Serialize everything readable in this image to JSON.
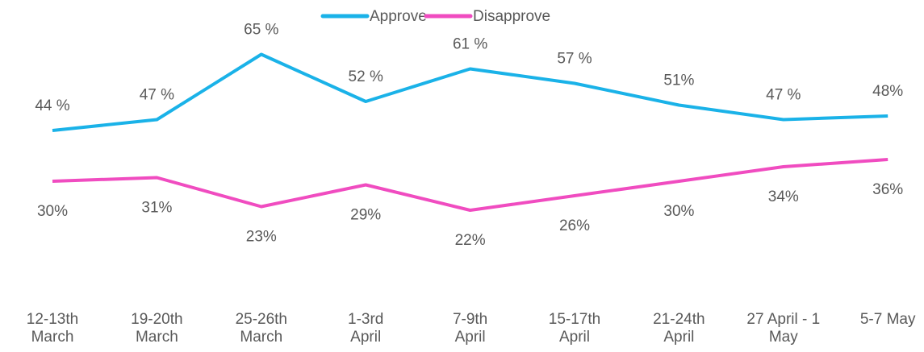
{
  "chart_data": {
    "type": "line",
    "categories": [
      "12-13th\nMarch",
      "19-20th\nMarch",
      "25-26th\nMarch",
      "1-3rd\nApril",
      "7-9th\nApril",
      "15-17th\nApril",
      "21-24th\nApril",
      "27 April - 1\nMay",
      "5-7 May"
    ],
    "series": [
      {
        "name": "Approve",
        "color": "#1ab2e8",
        "values": [
          44,
          47,
          65,
          52,
          61,
          57,
          51,
          47,
          48
        ],
        "value_labels": [
          "44 %",
          "47 %",
          "65 %",
          "52 %",
          "61 %",
          "57 %",
          "51%",
          "47 %",
          "48%"
        ]
      },
      {
        "name": "Disapprove",
        "color": "#f04cc0",
        "values": [
          30,
          31,
          23,
          29,
          22,
          26,
          30,
          34,
          36
        ],
        "value_labels": [
          "30%",
          "31%",
          "23%",
          "29%",
          "22%",
          "26%",
          "30%",
          "34%",
          "36%"
        ]
      }
    ],
    "ylim": [
      0,
      80
    ],
    "legend": "top"
  }
}
